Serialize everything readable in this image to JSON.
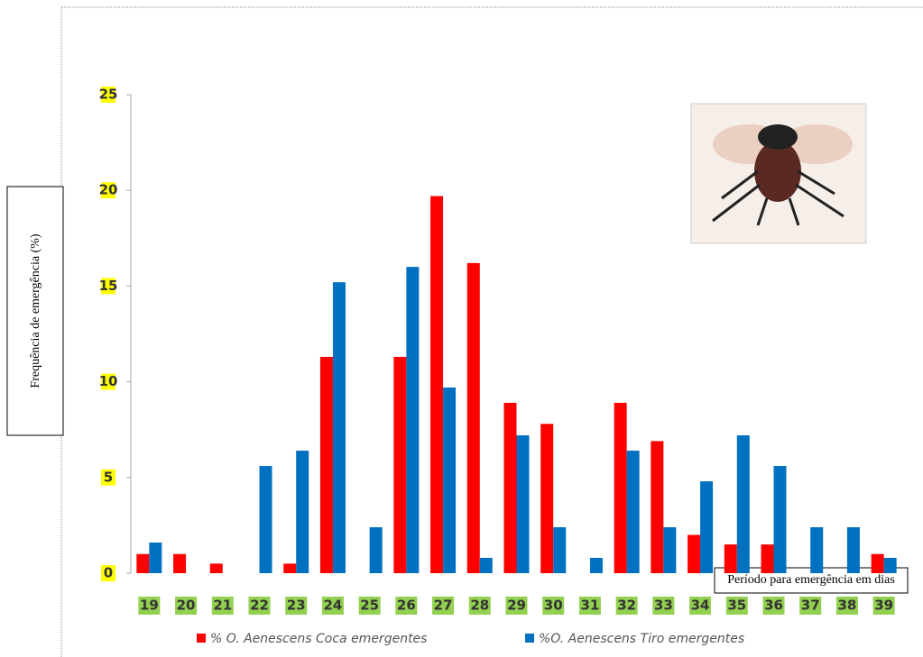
{
  "chart_data": {
    "type": "bar",
    "y_label": "Frequência de emergência (%)",
    "x_label": "Período para emergência em dias",
    "categories": [
      "19",
      "20",
      "21",
      "22",
      "23",
      "24",
      "25",
      "26",
      "27",
      "28",
      "29",
      "30",
      "31",
      "32",
      "33",
      "34",
      "35",
      "36",
      "37",
      "38",
      "39"
    ],
    "series": [
      {
        "name": "% O. Aenescens Coca emergentes",
        "color": "#ff0000",
        "values": [
          1,
          1,
          0.5,
          0,
          0.5,
          11.3,
          0,
          11.3,
          19.7,
          16.2,
          8.9,
          7.8,
          0,
          8.9,
          6.9,
          2,
          1.5,
          1.5,
          0,
          0,
          1
        ]
      },
      {
        "name": "%O. Aenescens Tiro emergentes",
        "color": "#0070c0",
        "values": [
          1.6,
          0,
          0,
          5.6,
          6.4,
          15.2,
          2.4,
          16,
          9.7,
          0.8,
          7.2,
          2.4,
          0.8,
          6.4,
          2.4,
          4.8,
          7.2,
          5.6,
          2.4,
          2.4,
          0.8
        ]
      }
    ],
    "ylim": [
      0,
      25
    ],
    "yticks": [
      0,
      5,
      10,
      15,
      20,
      25
    ]
  }
}
